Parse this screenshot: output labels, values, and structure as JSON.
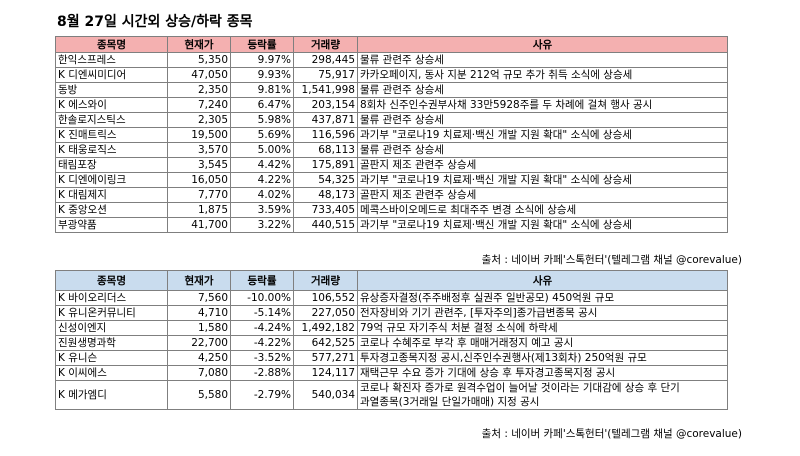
{
  "title": "8월 27일  시간외 상승/하락 종목",
  "columns": {
    "name": "종목명",
    "price": "현재가",
    "change": "등락률",
    "volume": "거래량",
    "reason": "사유"
  },
  "rising": [
    {
      "name": " 한익스프레스",
      "price": "5,350",
      "change": "9.97%",
      "volume": "298,445",
      "reason": "물류 관련주 상승세"
    },
    {
      "name": "K 디엔씨미디어",
      "price": "47,050",
      "change": "9.93%",
      "volume": "75,917",
      "reason": "카카오페이지, 동사 지분 212억 규모 추가 취득 소식에 상승세"
    },
    {
      "name": " 동방",
      "price": "2,350",
      "change": "9.81%",
      "volume": "1,541,998",
      "reason": "물류 관련주 상승세"
    },
    {
      "name": "K 에스와이",
      "price": "7,240",
      "change": "6.47%",
      "volume": "203,154",
      "reason": "8회차 신주인수권부사채 33만5928주를 두 차례에 걸쳐 행사 공시"
    },
    {
      "name": " 한솔로지스틱스",
      "price": "2,305",
      "change": "5.98%",
      "volume": "437,871",
      "reason": "물류 관련주 상승세"
    },
    {
      "name": "K 진매트릭스",
      "price": "19,500",
      "change": "5.69%",
      "volume": "116,596",
      "reason": "과기부 \"코로나19 치료제·백신 개발 지원 확대\" 소식에 상승세"
    },
    {
      "name": "K 태웅로직스",
      "price": "3,570",
      "change": "5.00%",
      "volume": "68,113",
      "reason": "물류 관련주 상승세"
    },
    {
      "name": " 태림포장",
      "price": "3,545",
      "change": "4.42%",
      "volume": "175,891",
      "reason": "골판지 제조 관련주 상승세"
    },
    {
      "name": "K 디엔에이링크",
      "price": "16,050",
      "change": "4.22%",
      "volume": "54,325",
      "reason": "과기부 \"코로나19 치료제·백신 개발 지원 확대\" 소식에 상승세"
    },
    {
      "name": "K 대림제지",
      "price": "7,770",
      "change": "4.02%",
      "volume": "48,173",
      "reason": "골판지 제조 관련주 상승세"
    },
    {
      "name": "K 중앙오션",
      "price": "1,875",
      "change": "3.59%",
      "volume": "733,405",
      "reason": "메콕스바이오메드로 최대주주 변경 소식에 상승세"
    },
    {
      "name": " 부광약품",
      "price": "41,700",
      "change": "3.22%",
      "volume": "440,515",
      "reason": "과기부 \"코로나19 치료제·백신 개발 지원 확대\" 소식에 상승세"
    }
  ],
  "falling": [
    {
      "name": "K 바이오리더스",
      "price": "7,560",
      "change": "-10.00%",
      "volume": "106,552",
      "reason": "유상증자결정(주주배정후 실권주 일반공모) 450억원 규모"
    },
    {
      "name": "K 유니온커뮤니티",
      "price": "4,710",
      "change": "-5.14%",
      "volume": "227,050",
      "reason": "전자장비와 기기 관련주, [투자주의]종가급변종목 공시"
    },
    {
      "name": " 신성이엔지",
      "price": "1,580",
      "change": "-4.24%",
      "volume": "1,492,182",
      "reason": "79억 규모 자기주식 처분 결정 소식에 하락세"
    },
    {
      "name": " 진원생명과학",
      "price": "22,700",
      "change": "-4.22%",
      "volume": "642,525",
      "reason": "코로나 수혜주로 부각 후 매매거래정지 예고 공시"
    },
    {
      "name": "K 유니슨",
      "price": "4,250",
      "change": "-3.52%",
      "volume": "577,271",
      "reason": "투자경고종목지정 공시,신주인수권행사(제13회차) 250억원 규모"
    },
    {
      "name": "K 이씨에스",
      "price": "7,080",
      "change": "-2.88%",
      "volume": "124,117",
      "reason": "재택근무 수요 증가 기대에 상승 후 투자경고종목지정 공시"
    },
    {
      "name": "K 메가엠디",
      "price": "5,580",
      "change": "-2.79%",
      "volume": "540,034",
      "reason_line1": "코로나 확진자 증가로 원격수업이 늘어날 것이라는 기대감에 상승 후 단기",
      "reason_line2": "과열종목(3거래일 단일가매매) 지정 공시"
    }
  ],
  "source": "출처 : 네이버 카페'스톡헌터'(텔레그램 채널 @corevalue)"
}
